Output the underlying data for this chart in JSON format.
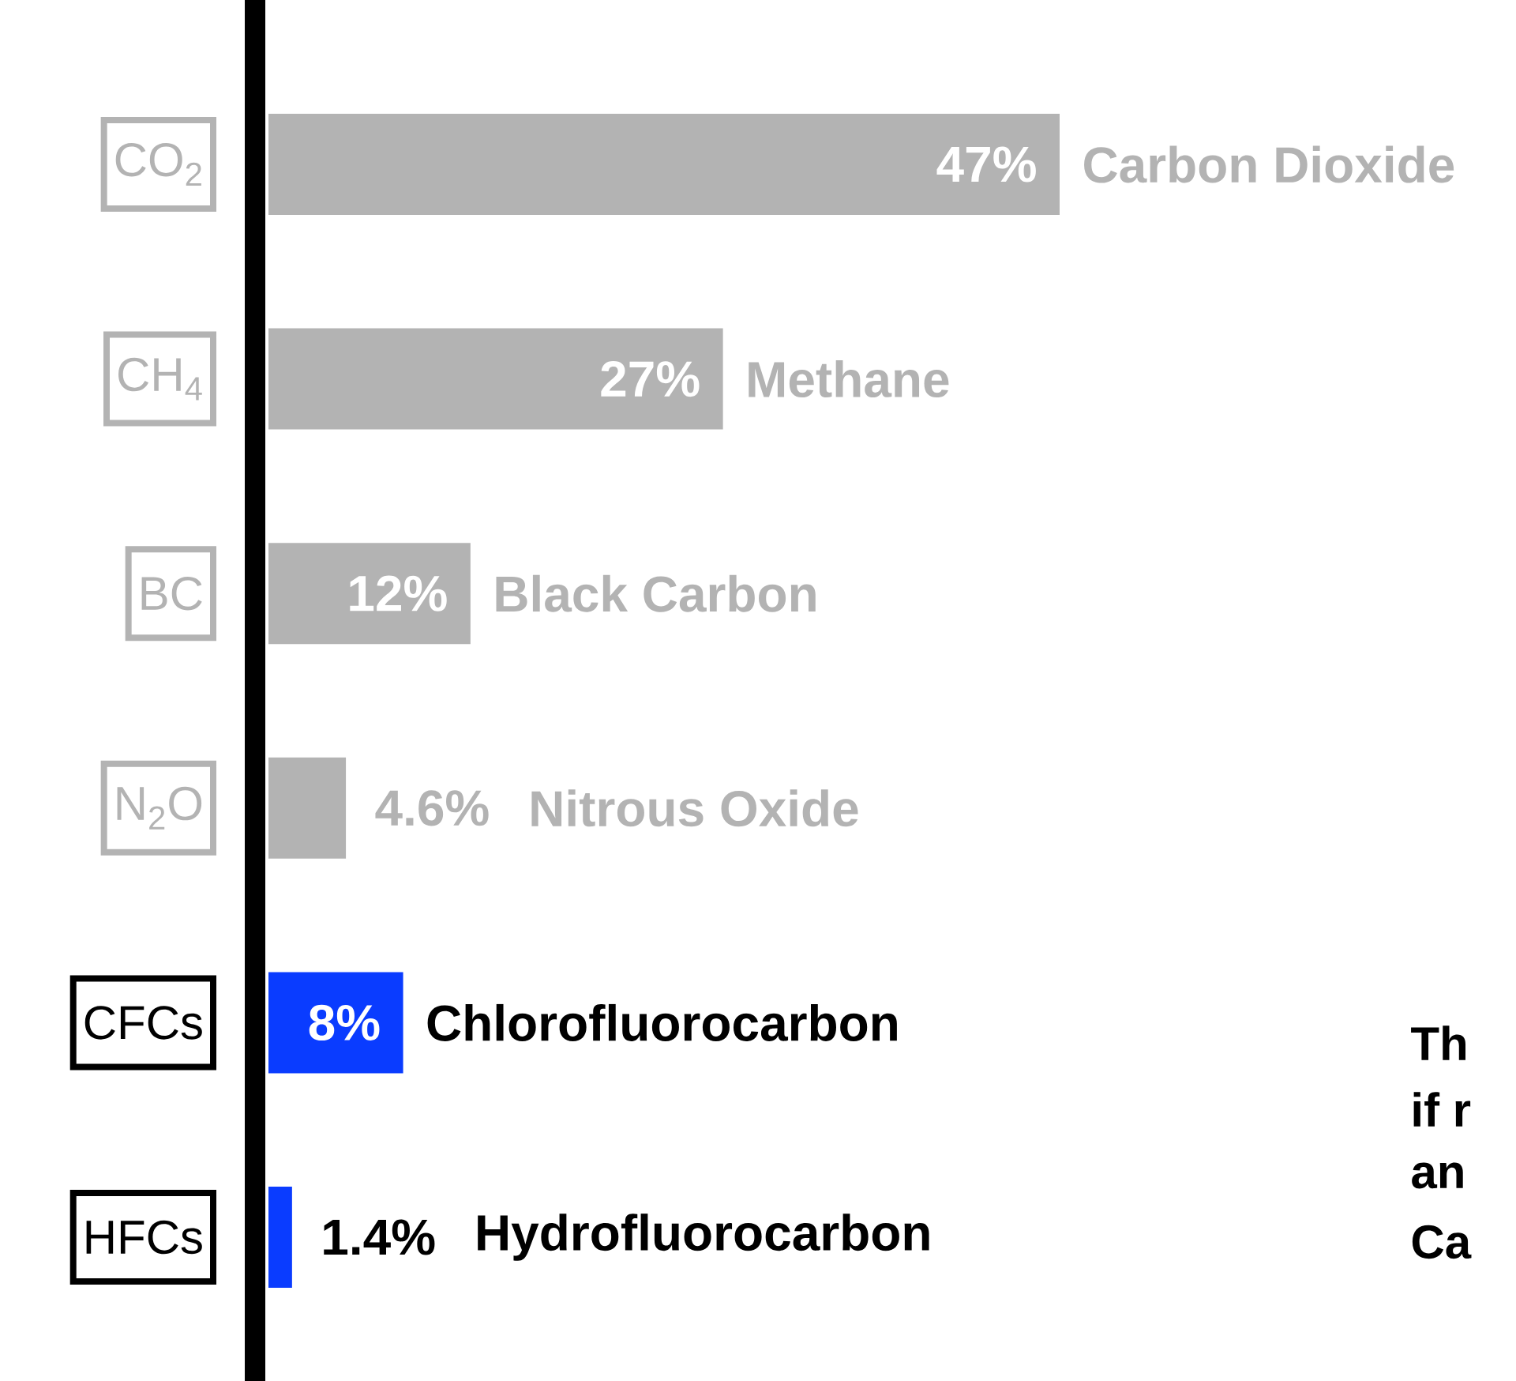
{
  "chart_data": {
    "type": "bar",
    "orientation": "horizontal",
    "categories": [
      "CO$_{2}$",
      "CH$_{4}$",
      "BC",
      "N$_{2}$O",
      "CFCs",
      "HFCs"
    ],
    "values": [
      47,
      27,
      12,
      4.6,
      8,
      1.4
    ],
    "value_labels": [
      "47%",
      "27%",
      "12%",
      "4.6%",
      "8%",
      "1.4%"
    ],
    "colors": [
      "#b3b3b3",
      "#b3b3b3",
      "#b3b3b3",
      "#b3b3b3",
      "#0a3cff",
      "#0a3cff"
    ],
    "annotations": [
      "Carbon Dioxide",
      "Methane",
      "Black Carbon",
      "Nitrous Oxide",
      "Chlorofluorocarbon",
      "Hydrofluorocarbon",
      "Th",
      "if r",
      "an",
      "Ca"
    ]
  }
}
